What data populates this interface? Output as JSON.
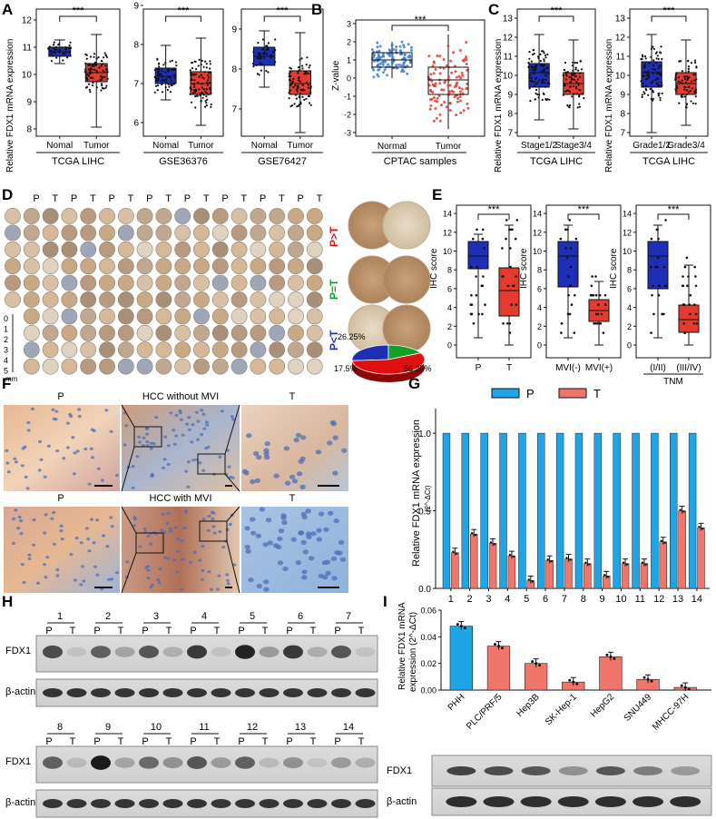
{
  "figure": {
    "panel_letters": [
      "A",
      "B",
      "C",
      "D",
      "E",
      "F",
      "G",
      "H",
      "I"
    ],
    "significance": "***"
  },
  "colors": {
    "blue": "#1f2fb5",
    "red": "#e53b2e",
    "g_blue": "#1fa5e6",
    "g_red": "#f0756a",
    "green": "#13a02a"
  },
  "panel_A": {
    "ylabel": "Relative FDX1 mRNA expression",
    "plots": [
      {
        "dataset": "TCGA LIHC",
        "groups": [
          "Nomal",
          "Tumor"
        ],
        "yticks": [
          "8",
          "9",
          "10",
          "11",
          "12"
        ]
      },
      {
        "dataset": "GSE36376",
        "groups": [
          "Nomal",
          "Tumor"
        ],
        "yticks": [
          "6",
          "7",
          "8",
          "9"
        ]
      },
      {
        "dataset": "GSE76427",
        "groups": [
          "Nomal",
          "Tumor"
        ],
        "yticks": [
          "7",
          "8",
          "9"
        ]
      }
    ]
  },
  "panel_B": {
    "ylabel": "Z-value",
    "xlabel": "CPTAC samples",
    "groups": [
      "Normal",
      "Tumor"
    ],
    "yticks": [
      "-3",
      "-2",
      "-1",
      "0",
      "1",
      "2",
      "3"
    ]
  },
  "panel_C": {
    "ylabel": "Relative FDX1 mRNA expression",
    "plots": [
      {
        "dataset": "TCGA LIHC",
        "groups": [
          "Stage1/2",
          "Stage3/4"
        ],
        "yticks": [
          "7",
          "8",
          "9",
          "10",
          "11",
          "12",
          "13"
        ]
      },
      {
        "dataset": "TCGA LIHC",
        "groups": [
          "Grade1/2",
          "Grade3/4"
        ],
        "yticks": [
          "7",
          "8",
          "9",
          "10",
          "11",
          "12",
          "13"
        ]
      }
    ]
  },
  "panel_D": {
    "column_headers": [
      "P",
      "T",
      "P",
      "T",
      "P",
      "T",
      "P",
      "T",
      "P",
      "T",
      "P",
      "T",
      "P",
      "T",
      "P",
      "T"
    ],
    "scale_ticks": [
      "0",
      "1",
      "2",
      "3",
      "4",
      "5"
    ],
    "scale_unit": "mm",
    "row_labels": [
      "P>T",
      "P=T",
      "P<T"
    ],
    "pie": {
      "values": [
        26.25,
        17.5,
        56.25
      ],
      "labels": [
        "26.25%",
        "17.5%",
        "56.25%"
      ]
    }
  },
  "panel_E": {
    "ylabel": "IHC score",
    "yticks": [
      "0",
      "2",
      "4",
      "6",
      "8",
      "10",
      "12",
      "14"
    ],
    "plots": [
      {
        "groups": [
          "P",
          "T"
        ],
        "group_title": ""
      },
      {
        "groups": [
          "MVI(-)",
          "MVI(+)"
        ],
        "group_title": ""
      },
      {
        "groups": [
          "(I/II)",
          "(III/IV)"
        ],
        "group_title": "TNM"
      }
    ]
  },
  "panel_F": {
    "rows": [
      {
        "left": "P",
        "middle": "HCC without MVI",
        "right": "T"
      },
      {
        "left": "P",
        "middle": "HCC with MVI",
        "right": "T"
      }
    ]
  },
  "panel_G": {
    "legend": [
      "P",
      "T"
    ],
    "ylabel": "Relative FDX1 mRNA expression",
    "ylabel2": "(2^-ΔCt)",
    "yticks": [
      "0.0",
      "0.5",
      "1.0"
    ],
    "chart_data": {
      "type": "bar",
      "categories": [
        "1",
        "2",
        "3",
        "4",
        "5",
        "6",
        "7",
        "8",
        "9",
        "10",
        "11",
        "12",
        "13",
        "14"
      ],
      "series": [
        {
          "name": "P",
          "values": [
            1,
            1,
            1,
            1,
            1,
            1,
            1,
            1,
            1,
            1,
            1,
            1,
            1,
            1
          ]
        },
        {
          "name": "T",
          "values": [
            0.23,
            0.35,
            0.29,
            0.21,
            0.05,
            0.18,
            0.19,
            0.16,
            0.08,
            0.16,
            0.16,
            0.3,
            0.5,
            0.39
          ]
        }
      ],
      "ylim": [
        0,
        1.1
      ]
    }
  },
  "panel_H": {
    "upper_samples": [
      "1",
      "2",
      "3",
      "4",
      "5",
      "6",
      "7"
    ],
    "lower_samples": [
      "8",
      "9",
      "10",
      "11",
      "12",
      "13",
      "14"
    ],
    "lane_labels": [
      "P",
      "T"
    ],
    "rows": [
      "FDX1",
      "β-actin"
    ],
    "upper_fdx1_intensity": [
      0.7,
      0.1,
      0.6,
      0.25,
      0.65,
      0.2,
      0.8,
      0.1,
      0.9,
      0.3,
      0.8,
      0.2,
      0.65,
      0.1
    ],
    "lower_fdx1_intensity": [
      0.6,
      0.15,
      0.95,
      0.25,
      0.55,
      0.35,
      0.65,
      0.3,
      0.6,
      0.15,
      0.35,
      0.1,
      0.3,
      0.2
    ]
  },
  "panel_I": {
    "ylabel": "Relative FDX1 mRNA",
    "ylabel2": "expression (2^-ΔCt)",
    "yticks": [
      "0.00",
      "0.02",
      "0.04",
      "0.06"
    ],
    "rows": [
      "FDX1",
      "β-actin"
    ],
    "chart_data": {
      "type": "bar",
      "categories": [
        "PHH",
        "PLC/PRF/5",
        "Hep3B",
        "SK-Hep-1",
        "HepG2",
        "SNU449",
        "MHCC-97H"
      ],
      "values": [
        0.048,
        0.033,
        0.02,
        0.006,
        0.025,
        0.008,
        0.002
      ],
      "ylim": [
        0,
        0.06
      ]
    },
    "fdx1_intensity": [
      0.75,
      0.7,
      0.65,
      0.35,
      0.65,
      0.45,
      0.3
    ]
  }
}
